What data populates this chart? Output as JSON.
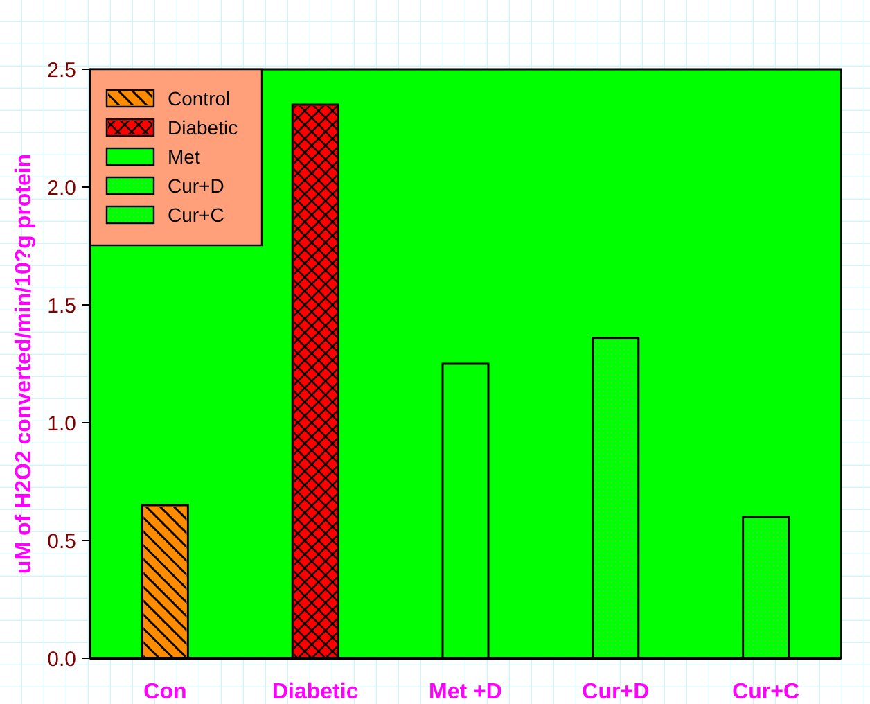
{
  "chart_data": {
    "type": "bar",
    "ylabel": "uM of H2O2 converted/min/10?g protein",
    "categories": [
      "Con",
      "Diabetic",
      "Met +D",
      "Cur+D",
      "Cur+C"
    ],
    "series": [
      {
        "name": "Control",
        "color": "#ff8c00",
        "values": [
          0.65,
          null,
          null,
          null,
          null
        ]
      },
      {
        "name": "Diabetic",
        "color": "#ff0000",
        "values": [
          null,
          2.35,
          null,
          null,
          null
        ]
      },
      {
        "name": "Met",
        "color": "#00ff00",
        "values": [
          null,
          null,
          1.25,
          null,
          null
        ]
      },
      {
        "name": "Cur+D",
        "color": "#00ff00",
        "values": [
          null,
          null,
          null,
          1.36,
          null
        ]
      },
      {
        "name": "Cur+C",
        "color": "#00ff00",
        "values": [
          null,
          null,
          null,
          null,
          0.6
        ]
      }
    ],
    "ylim": [
      0,
      2.5
    ],
    "yticks": [
      {
        "value": 0,
        "label": "0.0"
      },
      {
        "value": 0.5,
        "label": "0.5"
      },
      {
        "value": 1,
        "label": "1.0"
      },
      {
        "value": 1.5,
        "label": "1.5"
      },
      {
        "value": 2,
        "label": "2.0"
      },
      {
        "value": 2.5,
        "label": "2.5"
      }
    ],
    "legend": "top left"
  }
}
